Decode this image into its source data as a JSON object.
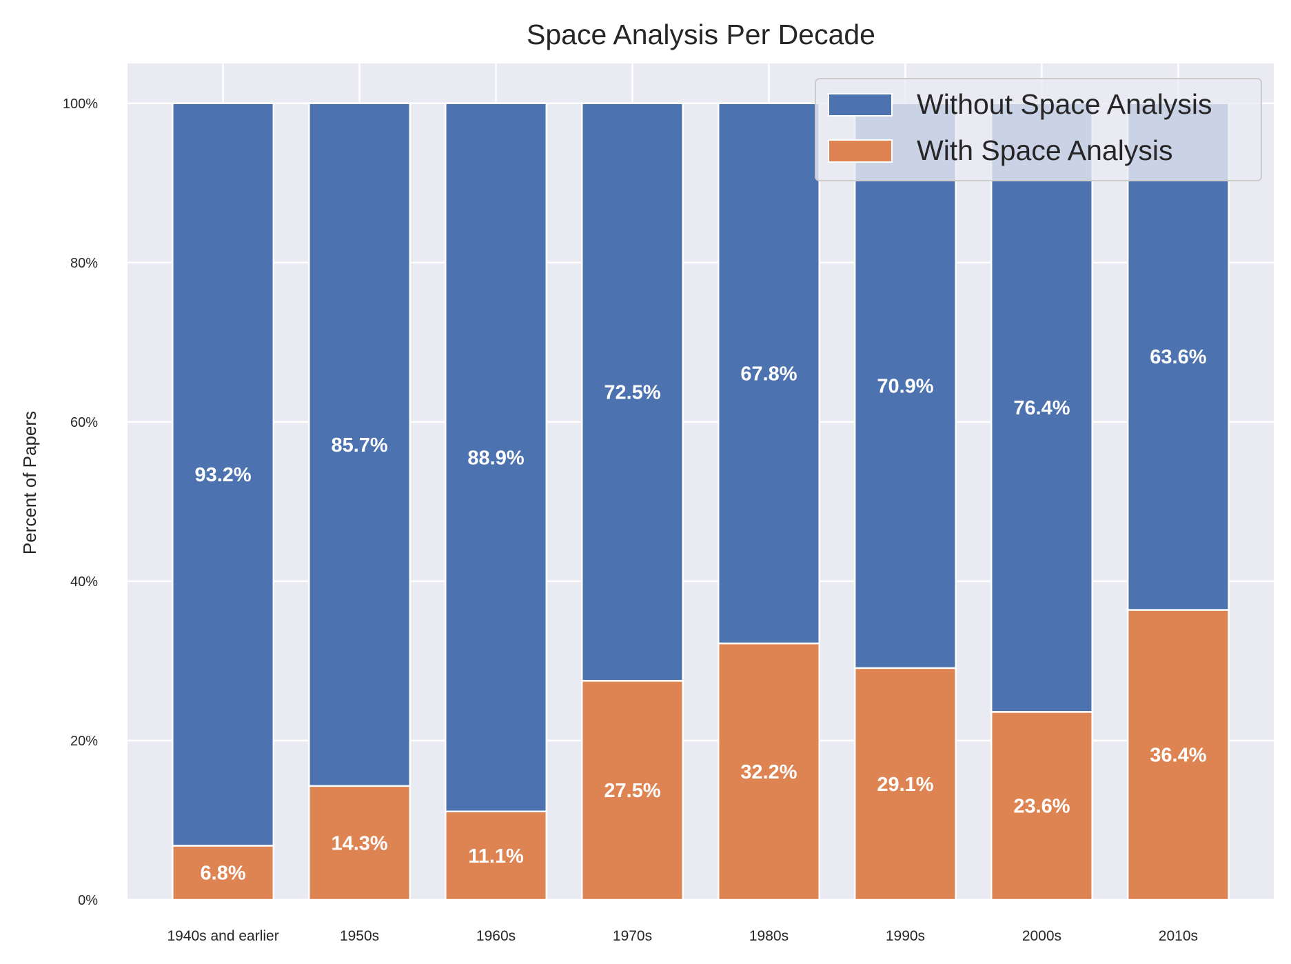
{
  "chart_data": {
    "type": "bar",
    "stacked": true,
    "title": "Space Analysis Per Decade",
    "xlabel": "",
    "ylabel": "Percent of Papers",
    "ylim": [
      0,
      105
    ],
    "yticks": [
      0,
      20,
      40,
      60,
      80,
      100
    ],
    "ytick_labels": [
      "0%",
      "20%",
      "40%",
      "60%",
      "80%",
      "100%"
    ],
    "grid": true,
    "legend_position": "top-right",
    "categories": [
      "1940s and earlier",
      "1950s",
      "1960s",
      "1970s",
      "1980s",
      "1990s",
      "2000s",
      "2010s"
    ],
    "series": [
      {
        "name": "With Space Analysis",
        "color": "#dd8452",
        "values": [
          6.8,
          14.3,
          11.1,
          27.5,
          32.2,
          29.1,
          23.6,
          36.4
        ],
        "labels": [
          "6.8%",
          "14.3%",
          "11.1%",
          "27.5%",
          "32.2%",
          "29.1%",
          "23.6%",
          "36.4%"
        ]
      },
      {
        "name": "Without Space Analysis",
        "color": "#4c72b0",
        "values": [
          93.2,
          85.7,
          88.9,
          72.5,
          67.8,
          70.9,
          76.4,
          63.6
        ],
        "labels": [
          "93.2%",
          "85.7%",
          "88.9%",
          "72.5%",
          "67.8%",
          "70.9%",
          "76.4%",
          "63.6%"
        ]
      }
    ],
    "legend_order": [
      "Without Space Analysis",
      "With Space Analysis"
    ]
  }
}
